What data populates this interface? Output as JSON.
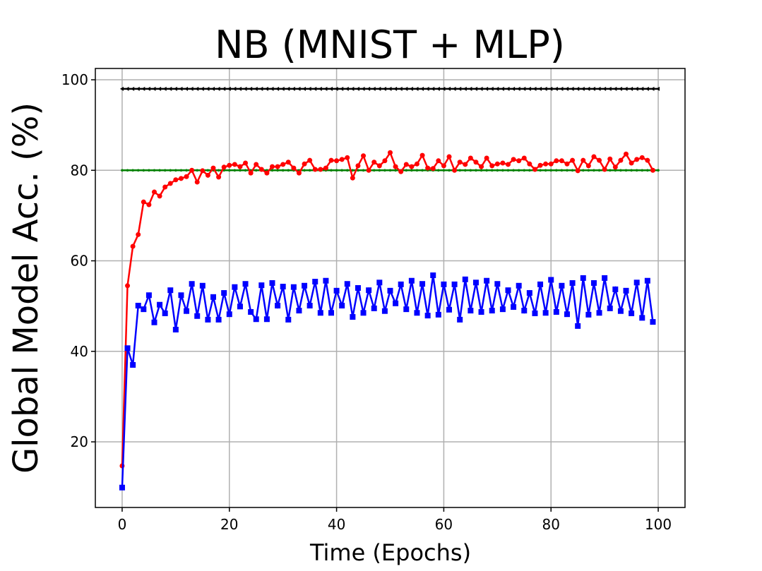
{
  "chart_data": {
    "type": "line",
    "title": "NB (MNIST + MLP)",
    "xlabel": "Time (Epochs)",
    "ylabel": "Global Model Acc. (%)",
    "x": [
      0,
      1,
      2,
      3,
      4,
      5,
      6,
      7,
      8,
      9,
      10,
      11,
      12,
      13,
      14,
      15,
      16,
      17,
      18,
      19,
      20,
      21,
      22,
      23,
      24,
      25,
      26,
      27,
      28,
      29,
      30,
      31,
      32,
      33,
      34,
      35,
      36,
      37,
      38,
      39,
      40,
      41,
      42,
      43,
      44,
      45,
      46,
      47,
      48,
      49,
      50,
      51,
      52,
      53,
      54,
      55,
      56,
      57,
      58,
      59,
      60,
      61,
      62,
      63,
      64,
      65,
      66,
      67,
      68,
      69,
      70,
      71,
      72,
      73,
      74,
      75,
      76,
      77,
      78,
      79,
      80,
      81,
      82,
      83,
      84,
      85,
      86,
      87,
      88,
      89,
      90,
      91,
      92,
      93,
      94,
      95,
      96,
      97,
      98,
      99,
      100
    ],
    "series": [
      {
        "color": "#000000",
        "marker": "triangle-left",
        "values": [
          98,
          98,
          98,
          98,
          98,
          98,
          98,
          98,
          98,
          98,
          98,
          98,
          98,
          98,
          98,
          98,
          98,
          98,
          98,
          98,
          98,
          98,
          98,
          98,
          98,
          98,
          98,
          98,
          98,
          98,
          98,
          98,
          98,
          98,
          98,
          98,
          98,
          98,
          98,
          98,
          98,
          98,
          98,
          98,
          98,
          98,
          98,
          98,
          98,
          98,
          98,
          98,
          98,
          98,
          98,
          98,
          98,
          98,
          98,
          98,
          98,
          98,
          98,
          98,
          98,
          98,
          98,
          98,
          98,
          98,
          98,
          98,
          98,
          98,
          98,
          98,
          98,
          98,
          98,
          98,
          98,
          98,
          98,
          98,
          98,
          98,
          98,
          98,
          98,
          98,
          98,
          98,
          98,
          98,
          98,
          98,
          98,
          98,
          98,
          98,
          98
        ]
      },
      {
        "color": "#008000",
        "marker": "point",
        "values": [
          80,
          80,
          80,
          80,
          80,
          80,
          80,
          80,
          80,
          80,
          80,
          80,
          80,
          80,
          80,
          80,
          80,
          80,
          80,
          80,
          80,
          80,
          80,
          80,
          80,
          80,
          80,
          80,
          80,
          80,
          80,
          80,
          80,
          80,
          80,
          80,
          80,
          80,
          80,
          80,
          80,
          80,
          80,
          80,
          80,
          80,
          80,
          80,
          80,
          80,
          80,
          80,
          80,
          80,
          80,
          80,
          80,
          80,
          80,
          80,
          80,
          80,
          80,
          80,
          80,
          80,
          80,
          80,
          80,
          80,
          80,
          80,
          80,
          80,
          80,
          80,
          80,
          80,
          80,
          80,
          80,
          80,
          80,
          80,
          80,
          80,
          80,
          80,
          80,
          80,
          80,
          80,
          80,
          80,
          80,
          80,
          80,
          80,
          80,
          80,
          80
        ]
      },
      {
        "color": "#ff0000",
        "marker": "circle",
        "values": [
          14.7,
          54.5,
          63.2,
          65.8,
          73.0,
          72.4,
          75.2,
          74.3,
          76.3,
          77.1,
          77.9,
          78.2,
          78.6,
          80.0,
          77.4,
          79.9,
          78.9,
          80.5,
          78.5,
          80.7,
          81.1,
          81.3,
          80.8,
          81.6,
          79.4,
          81.3,
          80.2,
          79.4,
          80.8,
          80.8,
          81.3,
          81.8,
          80.5,
          79.4,
          81.4,
          82.2,
          80.2,
          80.2,
          80.5,
          82.2,
          82.1,
          82.4,
          82.8,
          78.3,
          81.0,
          83.2,
          80.0,
          81.8,
          81.0,
          82.1,
          83.9,
          80.8,
          79.7,
          81.3,
          80.8,
          81.4,
          83.3,
          80.5,
          80.4,
          82.1,
          81.0,
          83.0,
          80.0,
          81.8,
          81.3,
          82.7,
          81.8,
          80.8,
          82.7,
          81.0,
          81.4,
          81.6,
          81.3,
          82.4,
          82.1,
          82.7,
          81.4,
          80.2,
          81.1,
          81.4,
          81.4,
          82.1,
          82.1,
          81.4,
          82.2,
          79.9,
          82.2,
          81.0,
          83.0,
          82.2,
          80.2,
          82.5,
          80.7,
          82.2,
          83.6,
          81.6,
          82.4,
          82.8,
          82.2,
          80.0,
          null
        ]
      },
      {
        "color": "#0000ff",
        "marker": "square",
        "values": [
          9.9,
          40.7,
          37.0,
          50.1,
          49.3,
          52.4,
          46.4,
          50.3,
          48.4,
          53.5,
          44.8,
          52.4,
          48.9,
          54.9,
          47.8,
          54.5,
          47.0,
          52.0,
          47.0,
          52.9,
          48.2,
          54.2,
          49.9,
          54.9,
          48.7,
          47.1,
          54.6,
          47.1,
          55.1,
          50.1,
          54.3,
          47.0,
          54.2,
          49.0,
          54.5,
          50.1,
          55.4,
          48.5,
          55.6,
          48.5,
          53.4,
          50.1,
          54.9,
          47.6,
          54.0,
          48.5,
          53.5,
          49.5,
          55.2,
          48.9,
          53.4,
          50.6,
          54.8,
          49.3,
          55.6,
          48.5,
          54.9,
          47.9,
          56.8,
          48.1,
          54.8,
          49.2,
          54.8,
          47.0,
          55.9,
          49.0,
          55.2,
          48.7,
          55.6,
          49.0,
          54.9,
          49.3,
          53.5,
          49.8,
          54.5,
          49.0,
          52.9,
          48.4,
          54.8,
          48.5,
          55.8,
          48.7,
          54.5,
          48.2,
          55.1,
          45.6,
          56.2,
          48.1,
          55.1,
          48.5,
          56.2,
          49.5,
          53.7,
          48.9,
          53.4,
          48.4,
          55.2,
          47.4,
          55.6,
          46.5,
          null
        ]
      }
    ],
    "xlim": [
      -5,
      105
    ],
    "ylim": [
      5.5,
      102.5
    ],
    "xticks": [
      0,
      20,
      40,
      60,
      80,
      100
    ],
    "yticks": [
      20,
      40,
      60,
      80,
      100
    ],
    "grid": true
  }
}
